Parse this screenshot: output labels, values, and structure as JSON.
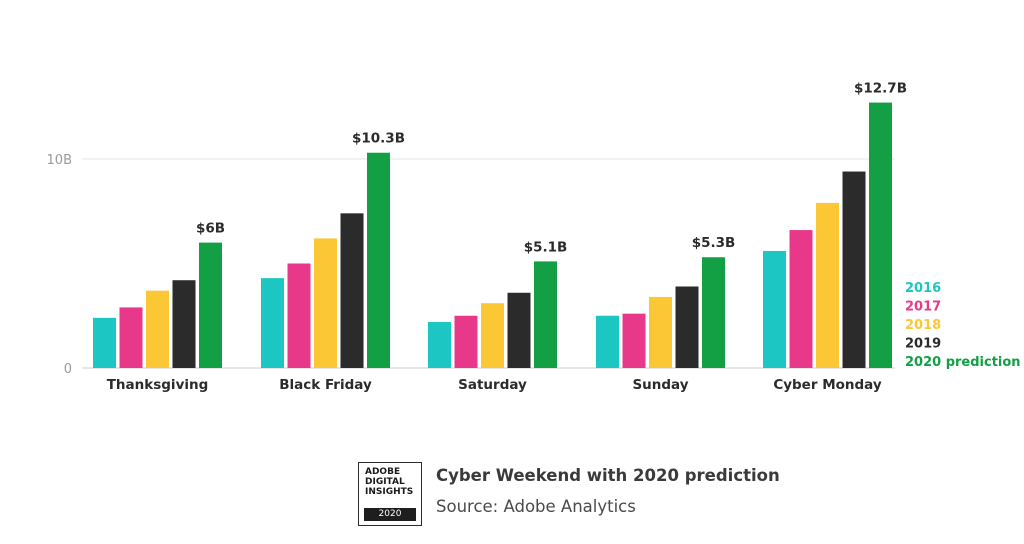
{
  "chart_data": {
    "type": "bar",
    "categories": [
      "Thanksgiving",
      "Black Friday",
      "Saturday",
      "Sunday",
      "Cyber Monday"
    ],
    "series": [
      {
        "name": "2016",
        "color": "#1cc6c2",
        "values": [
          2.4,
          4.3,
          2.2,
          2.5,
          5.6
        ]
      },
      {
        "name": "2017",
        "color": "#e8388a",
        "values": [
          2.9,
          5.0,
          2.5,
          2.6,
          6.6
        ]
      },
      {
        "name": "2018",
        "color": "#fcc735",
        "values": [
          3.7,
          6.2,
          3.1,
          3.4,
          7.9
        ]
      },
      {
        "name": "2019",
        "color": "#2b2b2b",
        "values": [
          4.2,
          7.4,
          3.6,
          3.9,
          9.4
        ]
      },
      {
        "name": "2020 prediction",
        "color": "#13a044",
        "values": [
          6.0,
          10.3,
          5.1,
          5.3,
          12.7
        ]
      }
    ],
    "data_labels": [
      "$6B",
      "$10.3B",
      "$5.1B",
      "$5.3B",
      "$12.7B"
    ],
    "y_ticks": [
      {
        "value": 0,
        "label": "0"
      },
      {
        "value": 10,
        "label": "10B"
      }
    ],
    "ylim": [
      0,
      14.5
    ],
    "grid": true,
    "legend_position": "right",
    "title": "Cyber Weekend with 2020 prediction",
    "source": "Source: Adobe Analytics"
  },
  "badge": {
    "lines": [
      "ADOBE",
      "DIGITAL",
      "INSIGHTS"
    ],
    "year": "2020"
  }
}
